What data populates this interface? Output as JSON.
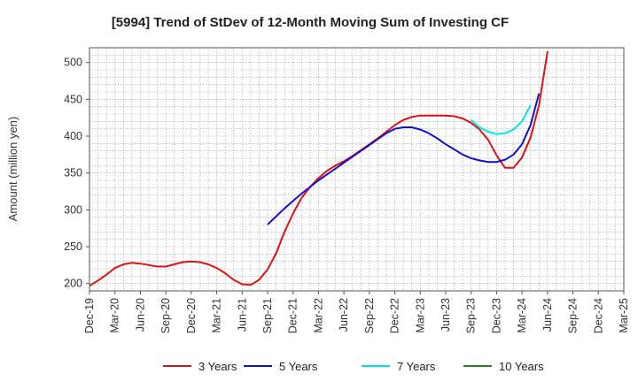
{
  "chart_data": {
    "type": "line",
    "title": "[5994]  Trend of StDev of 12-Month Moving Sum of Investing CF",
    "xlabel": "",
    "ylabel": "Amount (million yen)",
    "ylim": [
      190,
      520
    ],
    "yticks": [
      200,
      250,
      300,
      350,
      400,
      450,
      500
    ],
    "x_ticks": [
      "Dec-19",
      "Mar-20",
      "Jun-20",
      "Sep-20",
      "Dec-20",
      "Mar-21",
      "Jun-21",
      "Sep-21",
      "Dec-21",
      "Mar-22",
      "Jun-22",
      "Sep-22",
      "Dec-22",
      "Mar-23",
      "Jun-23",
      "Sep-23",
      "Dec-23",
      "Mar-24",
      "Jun-24",
      "Sep-24",
      "Dec-24",
      "Mar-25"
    ],
    "x_start": "2019-12",
    "x_count_months": 63,
    "grid": true,
    "legend_position": "bottom",
    "series": [
      {
        "name": "3 Years",
        "color": "#dd1111",
        "start_month_index": 0,
        "values": [
          197,
          204,
          212,
          221,
          226,
          228,
          227,
          225,
          223,
          223,
          226,
          229,
          230,
          229,
          226,
          221,
          214,
          205,
          199,
          198,
          205,
          219,
          241,
          270,
          295,
          316,
          331,
          343,
          353,
          360,
          366,
          373,
          381,
          389,
          397,
          406,
          415,
          422,
          426,
          428,
          428,
          428,
          428,
          427,
          424,
          418,
          409,
          395,
          374,
          357,
          357,
          371,
          398,
          442,
          515
        ]
      },
      {
        "name": "5 Years",
        "color": "#1111cc",
        "start_month_index": 21,
        "values": [
          280,
          291,
          302,
          312,
          322,
          331,
          340,
          348,
          356,
          364,
          372,
          380,
          388,
          396,
          404,
          410,
          412,
          412,
          409,
          404,
          397,
          389,
          382,
          375,
          370,
          367,
          365,
          365,
          368,
          375,
          389,
          415,
          458
        ]
      },
      {
        "name": "7 Years",
        "color": "#00e5f0",
        "start_month_index": 45,
        "values": [
          422,
          412,
          406,
          403,
          404,
          409,
          420,
          442
        ]
      },
      {
        "name": "10 Years",
        "color": "#1a8a1a",
        "start_month_index": 0,
        "values": []
      }
    ]
  }
}
